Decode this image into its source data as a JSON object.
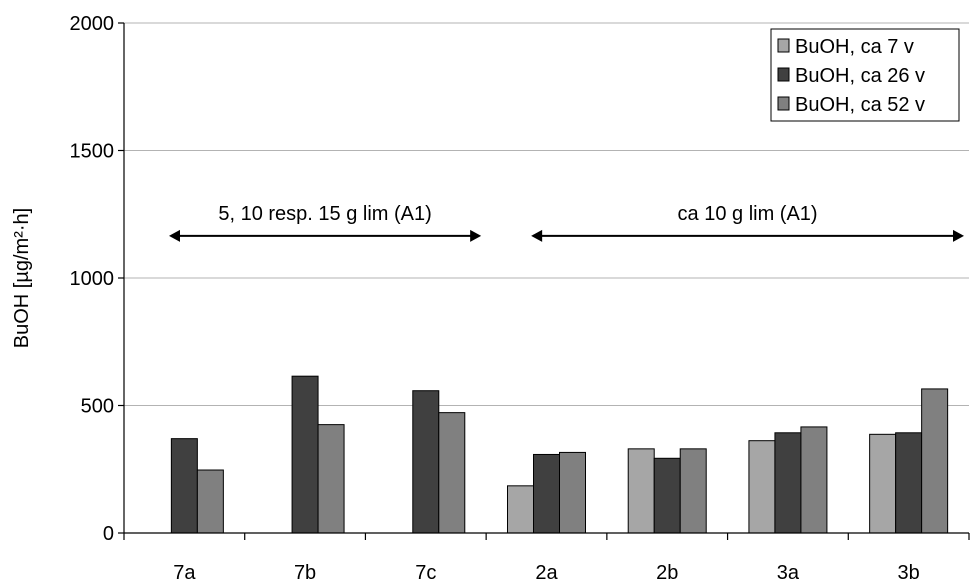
{
  "chart_data": {
    "type": "bar",
    "ylabel": "BuOH [µg/m²·h]",
    "ylim": [
      0,
      2000
    ],
    "yticks": [
      0,
      500,
      1000,
      1500,
      2000
    ],
    "ytick_labels": [
      "0",
      "500",
      "1000",
      "1500",
      "2000"
    ],
    "grid": "horizontal",
    "legend_position": "top-right",
    "categories": [
      "7a",
      "7b",
      "7c",
      "2a",
      "2b",
      "3a",
      "3b"
    ],
    "series": [
      {
        "name": "BuOH, ca 7 v",
        "color": "#a6a6a6",
        "values": [
          null,
          null,
          null,
          185,
          330,
          362,
          387
        ]
      },
      {
        "name": "BuOH, ca 26 v",
        "color": "#404040",
        "values": [
          370,
          615,
          558,
          308,
          293,
          393,
          393
        ]
      },
      {
        "name": "BuOH, ca 52 v",
        "color": "#808080",
        "values": [
          247,
          425,
          472,
          316,
          330,
          416,
          565
        ]
      }
    ],
    "annotations": [
      {
        "text": "5, 10 resp. 15 g lim (A1)",
        "from_category": "7a",
        "to_category": "7c",
        "y": 1165
      },
      {
        "text": "ca 10 g lim (A1)",
        "from_category": "2a",
        "to_category": "3b",
        "y": 1165
      }
    ]
  }
}
